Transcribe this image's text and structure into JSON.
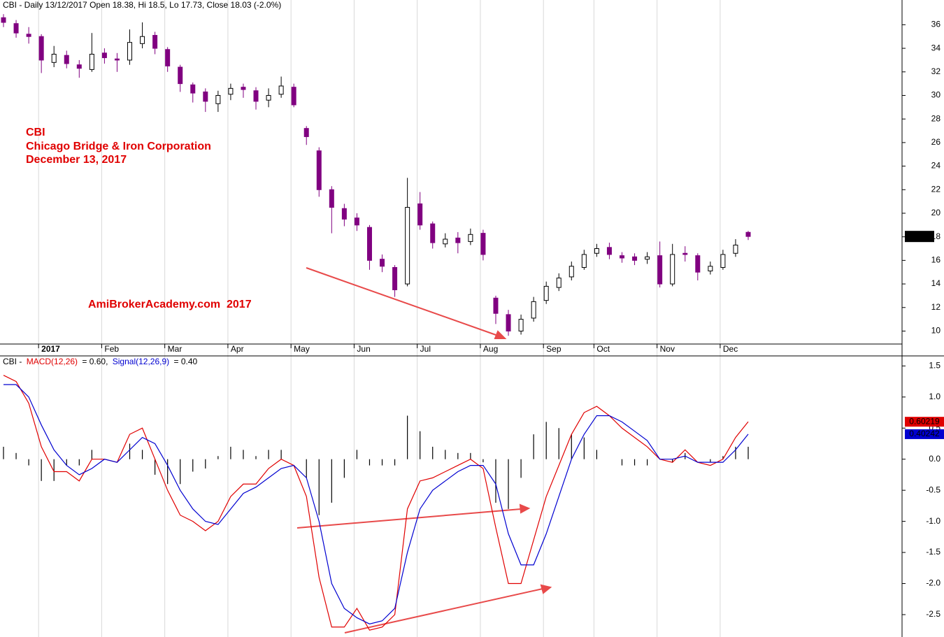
{
  "chart_data": [
    {
      "type": "candlestick",
      "title": "CBI - Daily 13/12/2017 Open 18.38, Hi 18.5, Lo 17.73, Close 18.03 (-2.0%)",
      "annotations": [
        "CBI",
        "Chicago Bridge & Iron Corporation",
        "December 13, 2017",
        "AmiBrokerAcademy.com  2017"
      ],
      "categories": [
        null,
        null,
        null,
        "2017",
        null,
        null,
        null,
        null,
        "Feb",
        null,
        null,
        null,
        null,
        "Mar",
        null,
        null,
        null,
        null,
        "Apr",
        null,
        null,
        null,
        null,
        "May",
        null,
        null,
        null,
        null,
        "Jun",
        null,
        null,
        null,
        null,
        "Jul",
        null,
        null,
        null,
        null,
        "Aug",
        null,
        null,
        null,
        null,
        "Sep",
        null,
        null,
        null,
        "Oct",
        null,
        null,
        null,
        null,
        "Nov",
        null,
        null,
        null,
        null,
        "Dec",
        null,
        null
      ],
      "open": [
        36.6,
        36.1,
        35.2,
        35.0,
        32.8,
        33.4,
        32.6,
        32.2,
        33.6,
        33.1,
        33.0,
        34.4,
        35.1,
        33.9,
        32.4,
        30.9,
        30.3,
        29.3,
        30.1,
        30.7,
        30.4,
        29.6,
        30.1,
        30.7,
        27.2,
        25.3,
        22.0,
        20.4,
        19.6,
        18.8,
        16.1,
        15.4,
        14.0,
        20.8,
        19.1,
        17.4,
        17.9,
        17.6,
        18.3,
        12.8,
        11.4,
        10.0,
        11.1,
        12.6,
        13.7,
        14.6,
        15.4,
        16.6,
        17.1,
        16.4,
        16.3,
        16.1,
        16.4,
        14.0,
        16.6,
        16.4,
        15.1,
        15.4,
        16.6,
        18.38
      ],
      "high": [
        36.9,
        36.4,
        35.8,
        35.2,
        34.2,
        33.8,
        33.0,
        35.3,
        34.0,
        33.6,
        35.6,
        36.2,
        35.4,
        34.1,
        32.6,
        31.1,
        30.6,
        30.4,
        31.0,
        31.0,
        30.7,
        30.6,
        31.6,
        31.0,
        27.4,
        25.6,
        22.3,
        20.8,
        20.0,
        19.0,
        16.5,
        15.6,
        23.0,
        21.8,
        19.3,
        18.3,
        18.4,
        18.7,
        18.6,
        13.0,
        11.8,
        11.4,
        12.9,
        14.2,
        14.9,
        15.9,
        16.9,
        17.4,
        17.5,
        16.7,
        16.6,
        16.7,
        17.6,
        17.4,
        17.2,
        16.6,
        15.9,
        16.9,
        17.8,
        18.5
      ],
      "low": [
        35.8,
        34.9,
        34.4,
        31.9,
        32.4,
        32.3,
        31.5,
        32.0,
        32.7,
        32.0,
        32.6,
        34.0,
        33.5,
        32.0,
        30.3,
        29.4,
        28.6,
        28.6,
        29.6,
        29.8,
        28.8,
        29.0,
        29.8,
        29.0,
        25.8,
        21.4,
        18.3,
        18.9,
        18.5,
        15.2,
        15.0,
        12.9,
        13.8,
        18.6,
        17.0,
        17.1,
        16.6,
        17.3,
        16.0,
        10.6,
        9.6,
        9.7,
        10.8,
        12.3,
        13.4,
        14.3,
        15.2,
        16.3,
        16.1,
        15.8,
        15.6,
        15.7,
        13.7,
        13.8,
        15.9,
        14.3,
        14.8,
        15.2,
        16.3,
        17.73
      ],
      "close": [
        36.2,
        35.3,
        35.0,
        33.0,
        33.5,
        32.7,
        32.3,
        33.5,
        33.2,
        33.0,
        34.5,
        35.0,
        34.0,
        32.5,
        31.0,
        30.2,
        29.5,
        30.0,
        30.6,
        30.5,
        29.5,
        30.0,
        30.8,
        29.2,
        26.5,
        22.0,
        20.5,
        19.5,
        19.0,
        16.0,
        15.5,
        13.5,
        20.5,
        19.0,
        17.5,
        17.8,
        17.5,
        18.2,
        16.5,
        11.5,
        10.0,
        11.0,
        12.5,
        13.8,
        14.5,
        15.5,
        16.5,
        17.0,
        16.5,
        16.2,
        16.0,
        16.3,
        14.0,
        16.5,
        16.5,
        15.0,
        15.5,
        16.5,
        17.3,
        18.03
      ],
      "up_color": "#ffffff",
      "down_color": "#800080",
      "ylim": [
        8.9,
        38.1
      ],
      "yticks": [
        10,
        12,
        14,
        16,
        18,
        20,
        22,
        24,
        26,
        28,
        30,
        32,
        34,
        36
      ],
      "grid": "x"
    },
    {
      "type": "line",
      "title": [
        "CBI -",
        "= 0.60,",
        "= 0.40"
      ],
      "series": [
        {
          "name": "MACD(12,26)",
          "color": "#e00000",
          "values": [
            1.35,
            1.25,
            0.9,
            0.2,
            -0.2,
            -0.2,
            -0.35,
            0.0,
            0.0,
            -0.05,
            0.4,
            0.5,
            0.0,
            -0.5,
            -0.9,
            -1.0,
            -1.15,
            -1.0,
            -0.6,
            -0.4,
            -0.4,
            -0.15,
            0.0,
            -0.1,
            -0.6,
            -1.9,
            -2.7,
            -2.7,
            -2.4,
            -2.75,
            -2.7,
            -2.5,
            -0.8,
            -0.35,
            -0.3,
            -0.2,
            -0.1,
            0.0,
            -0.15,
            -1.1,
            -2.0,
            -2.0,
            -1.3,
            -0.6,
            -0.1,
            0.4,
            0.75,
            0.85,
            0.7,
            0.5,
            0.35,
            0.2,
            0.0,
            -0.05,
            0.15,
            -0.05,
            -0.1,
            0.0,
            0.35,
            0.60219
          ]
        },
        {
          "name": "Signal(12,26,9)",
          "color": "#0000d0",
          "values": [
            1.2,
            1.2,
            1.0,
            0.55,
            0.15,
            -0.1,
            -0.25,
            -0.15,
            0.0,
            -0.05,
            0.15,
            0.35,
            0.25,
            -0.1,
            -0.5,
            -0.8,
            -1.0,
            -1.05,
            -0.8,
            -0.55,
            -0.45,
            -0.3,
            -0.15,
            -0.1,
            -0.3,
            -1.0,
            -2.0,
            -2.4,
            -2.55,
            -2.65,
            -2.6,
            -2.4,
            -1.5,
            -0.8,
            -0.5,
            -0.35,
            -0.2,
            -0.1,
            -0.1,
            -0.4,
            -1.2,
            -1.7,
            -1.7,
            -1.2,
            -0.6,
            0.0,
            0.4,
            0.7,
            0.7,
            0.6,
            0.45,
            0.3,
            0.0,
            0.0,
            0.05,
            -0.05,
            -0.05,
            -0.05,
            0.15,
            0.40242
          ]
        }
      ],
      "histogram": {
        "color": "#000000",
        "values": [
          0.2,
          0.1,
          -0.1,
          -0.35,
          -0.35,
          -0.1,
          -0.1,
          0.15,
          0.0,
          0.0,
          0.25,
          0.15,
          -0.25,
          -0.4,
          -0.4,
          -0.2,
          -0.15,
          0.05,
          0.2,
          0.15,
          0.05,
          0.15,
          0.15,
          0.0,
          -0.3,
          -0.9,
          -0.7,
          -0.3,
          0.15,
          -0.1,
          -0.1,
          -0.1,
          0.7,
          0.45,
          0.2,
          0.15,
          0.1,
          0.1,
          -0.05,
          -0.7,
          -0.8,
          -0.3,
          0.4,
          0.6,
          0.5,
          0.4,
          0.35,
          0.15,
          0.0,
          -0.1,
          -0.1,
          -0.1,
          0.0,
          -0.05,
          0.1,
          0.0,
          -0.05,
          0.05,
          0.2,
          0.2
        ]
      },
      "ylim": [
        -2.86,
        1.65
      ],
      "yticks": [
        1.5,
        {
          "value": 1.0,
          "label": "1.0"
        },
        0.5,
        {
          "value": 0.0,
          "label": "0.0"
        },
        -0.5,
        {
          "value": -1.0,
          "label": "-1.0"
        },
        -1.5,
        {
          "value": -2.0,
          "label": "-2.0"
        },
        -2.5
      ]
    }
  ]
}
